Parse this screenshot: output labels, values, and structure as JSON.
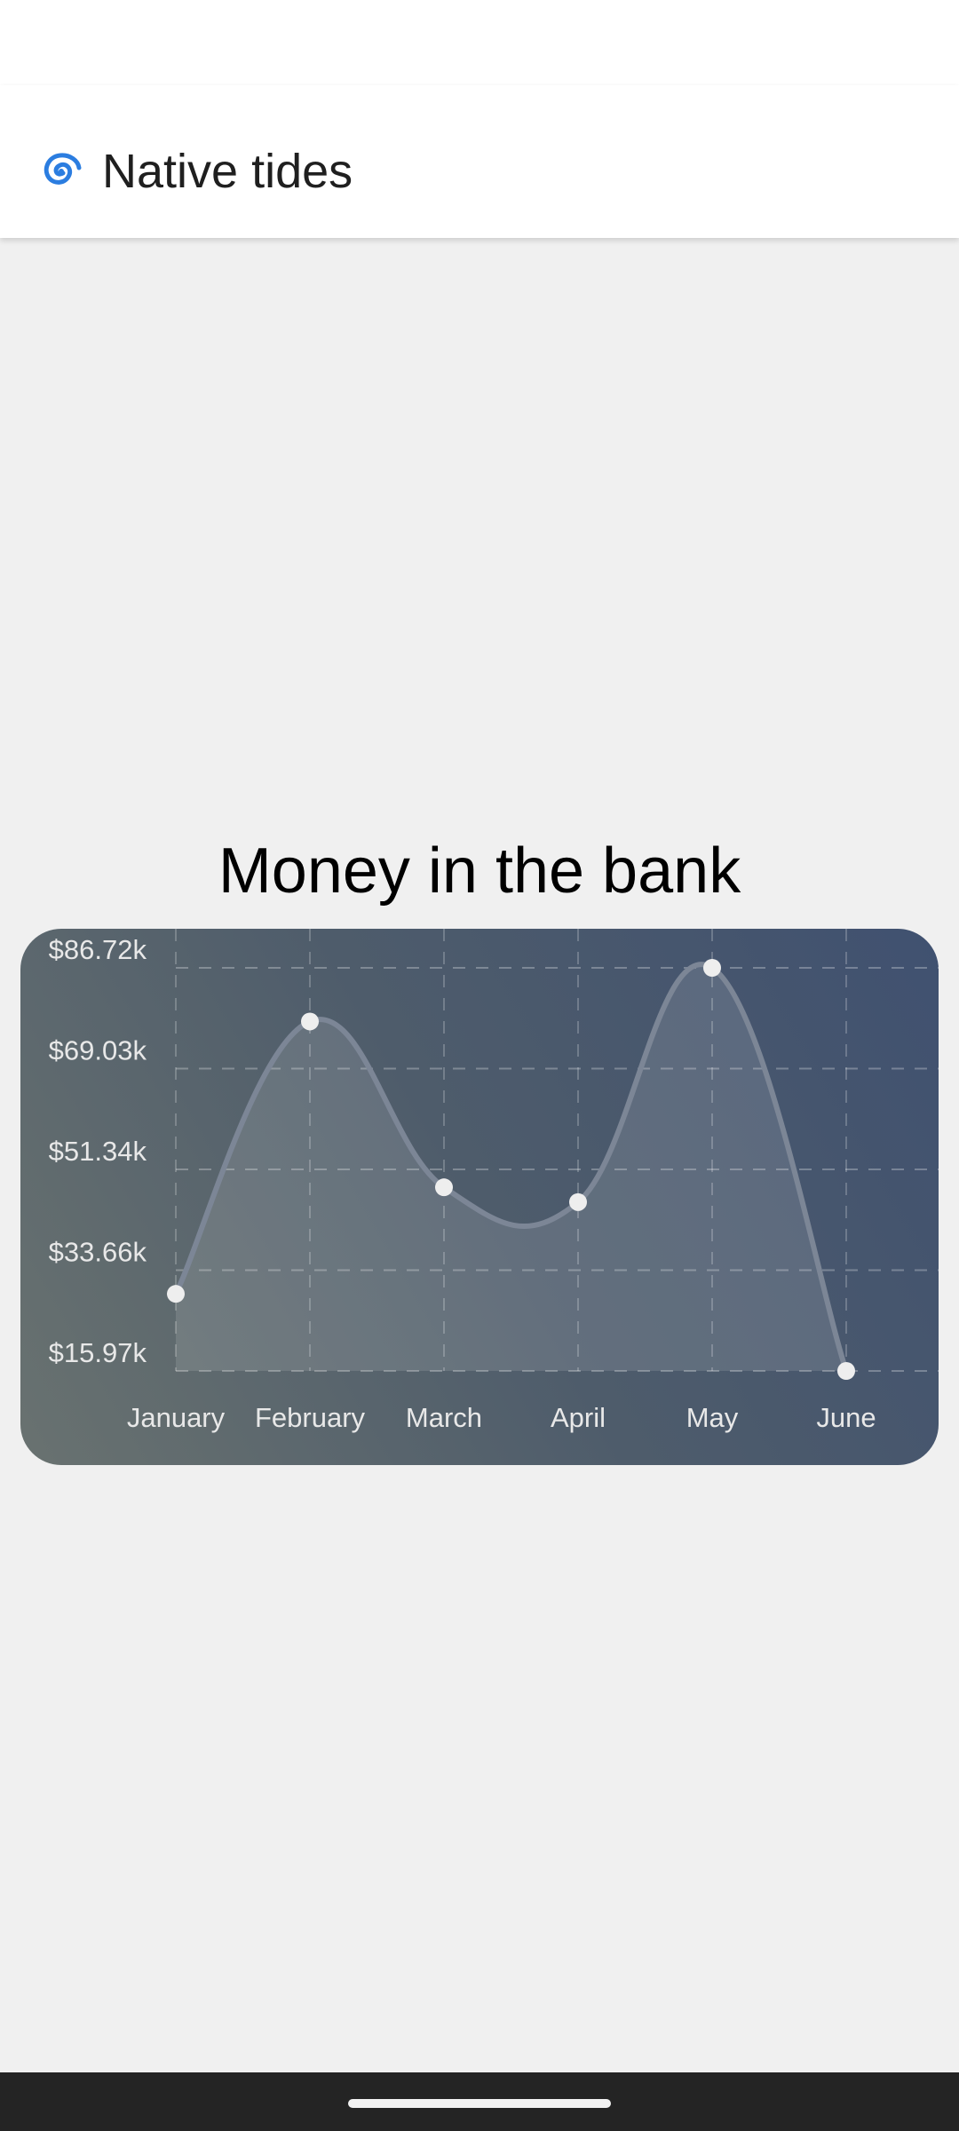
{
  "app_bar": {
    "icon": "cyclone-icon",
    "title": "Native tides"
  },
  "chart_data": {
    "type": "area",
    "title": "Money in the bank",
    "categories": [
      "January",
      "February",
      "March",
      "April",
      "May",
      "June"
    ],
    "values": [
      29500,
      77300,
      48200,
      45600,
      86720,
      15970
    ],
    "y_ticks": [
      "$86.72k",
      "$69.03k",
      "$51.34k",
      "$33.66k",
      "$15.97k"
    ],
    "ylim": [
      15970,
      86720
    ],
    "grid": true,
    "line_color": "#7c8696",
    "fill_color": "#ffffff",
    "marker_color": "#eeeeee",
    "label_color": "#e8e8e8"
  }
}
